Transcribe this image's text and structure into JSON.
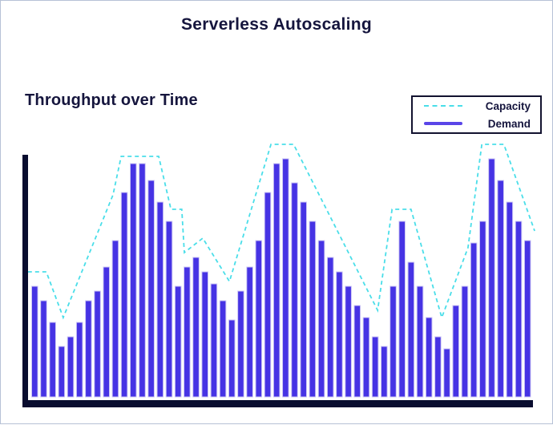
{
  "page": {
    "title": "Serverless Autoscaling"
  },
  "section": {
    "heading": "Throughput over Time"
  },
  "legend": {
    "items": [
      {
        "label": "Capacity",
        "style": "dashed",
        "color": "#4ADEE9"
      },
      {
        "label": "Demand",
        "style": "solid",
        "color": "#5A45E8"
      }
    ]
  },
  "colors": {
    "heading_text": "#15153D",
    "bar_fill": "#4633E4",
    "bar_stroke": "#CDC7F5",
    "capacity_line": "#4ADEE9",
    "axis": "#090D2F"
  },
  "chart_data": {
    "type": "bar",
    "title": "Serverless Autoscaling",
    "subtitle": "Throughput over Time",
    "xlabel": "",
    "ylabel": "",
    "x_tick_labels": [],
    "y_tick_labels": [],
    "ylim": [
      0,
      110
    ],
    "grid": false,
    "legend_position": "top-right",
    "series": [
      {
        "name": "Demand",
        "type": "bar",
        "values": [
          46,
          40,
          31,
          21,
          25,
          31,
          40,
          44,
          54,
          65,
          85,
          97,
          97,
          90,
          81,
          73,
          46,
          54,
          58,
          52,
          47,
          40,
          32,
          44,
          54,
          65,
          85,
          97,
          99,
          89,
          81,
          73,
          65,
          58,
          52,
          46,
          38,
          33,
          25,
          21,
          46,
          73,
          56,
          46,
          33,
          25,
          20,
          38,
          46,
          64,
          73,
          99,
          90,
          81,
          73,
          65
        ]
      },
      {
        "name": "Capacity",
        "type": "line",
        "dashed": true,
        "points": [
          [
            0.009,
            52
          ],
          [
            0.045,
            52
          ],
          [
            0.078,
            33
          ],
          [
            0.175,
            84
          ],
          [
            0.191,
            100
          ],
          [
            0.264,
            100
          ],
          [
            0.288,
            78
          ],
          [
            0.309,
            78
          ],
          [
            0.314,
            60
          ],
          [
            0.35,
            66
          ],
          [
            0.402,
            48
          ],
          [
            0.483,
            105
          ],
          [
            0.527,
            105
          ],
          [
            0.691,
            36
          ],
          [
            0.719,
            78
          ],
          [
            0.756,
            78
          ],
          [
            0.816,
            33
          ],
          [
            0.867,
            62
          ],
          [
            0.894,
            105
          ],
          [
            0.937,
            105
          ],
          [
            0.997,
            69
          ]
        ]
      }
    ]
  }
}
